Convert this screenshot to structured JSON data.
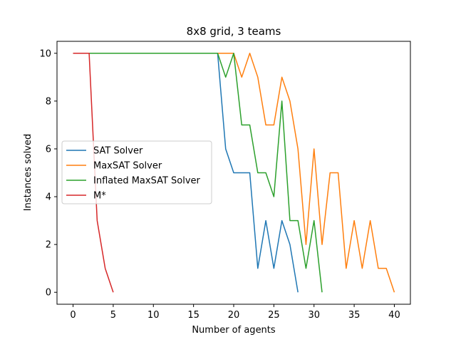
{
  "chart_data": {
    "type": "line",
    "title": "8x8 grid, 3 teams",
    "xlabel": "Number of agents",
    "ylabel": "Instances solved",
    "xlim": [
      -2,
      42
    ],
    "ylim": [
      -0.5,
      10.5
    ],
    "xticks": [
      0,
      5,
      10,
      15,
      20,
      25,
      30,
      35,
      40
    ],
    "yticks": [
      0,
      2,
      4,
      6,
      8,
      10
    ],
    "grid": false,
    "legend_position": "center-left",
    "series": [
      {
        "name": "SAT Solver",
        "color": "#1f77b4",
        "x": [
          0,
          1,
          2,
          3,
          4,
          5,
          6,
          7,
          8,
          9,
          10,
          11,
          12,
          13,
          14,
          15,
          16,
          17,
          18,
          19,
          20,
          21,
          22,
          23,
          24,
          25,
          26,
          27,
          28
        ],
        "y": [
          10,
          10,
          10,
          10,
          10,
          10,
          10,
          10,
          10,
          10,
          10,
          10,
          10,
          10,
          10,
          10,
          10,
          10,
          10,
          6,
          5,
          5,
          5,
          1,
          3,
          1,
          3,
          2,
          0
        ]
      },
      {
        "name": "MaxSAT Solver",
        "color": "#ff7f0e",
        "x": [
          0,
          1,
          2,
          3,
          4,
          5,
          6,
          7,
          8,
          9,
          10,
          11,
          12,
          13,
          14,
          15,
          16,
          17,
          18,
          19,
          20,
          21,
          22,
          23,
          24,
          25,
          26,
          27,
          28,
          29,
          30,
          31,
          32,
          33,
          34,
          35,
          36,
          37,
          38,
          39,
          40
        ],
        "y": [
          10,
          10,
          10,
          10,
          10,
          10,
          10,
          10,
          10,
          10,
          10,
          10,
          10,
          10,
          10,
          10,
          10,
          10,
          10,
          10,
          10,
          9,
          10,
          9,
          7,
          7,
          9,
          8,
          6,
          2,
          6,
          2,
          5,
          5,
          1,
          3,
          1,
          3,
          1,
          1,
          0
        ]
      },
      {
        "name": "Inflated MaxSAT Solver",
        "color": "#2ca02c",
        "x": [
          0,
          1,
          2,
          3,
          4,
          5,
          6,
          7,
          8,
          9,
          10,
          11,
          12,
          13,
          14,
          15,
          16,
          17,
          18,
          19,
          20,
          21,
          22,
          23,
          24,
          25,
          26,
          27,
          28,
          29,
          30,
          31
        ],
        "y": [
          10,
          10,
          10,
          10,
          10,
          10,
          10,
          10,
          10,
          10,
          10,
          10,
          10,
          10,
          10,
          10,
          10,
          10,
          10,
          9,
          10,
          7,
          7,
          5,
          5,
          4,
          8,
          3,
          3,
          1,
          3,
          0
        ]
      },
      {
        "name": "M*",
        "color": "#d62728",
        "x": [
          0,
          1,
          2,
          3,
          4,
          5
        ],
        "y": [
          10,
          10,
          10,
          3,
          1,
          0
        ]
      }
    ]
  }
}
